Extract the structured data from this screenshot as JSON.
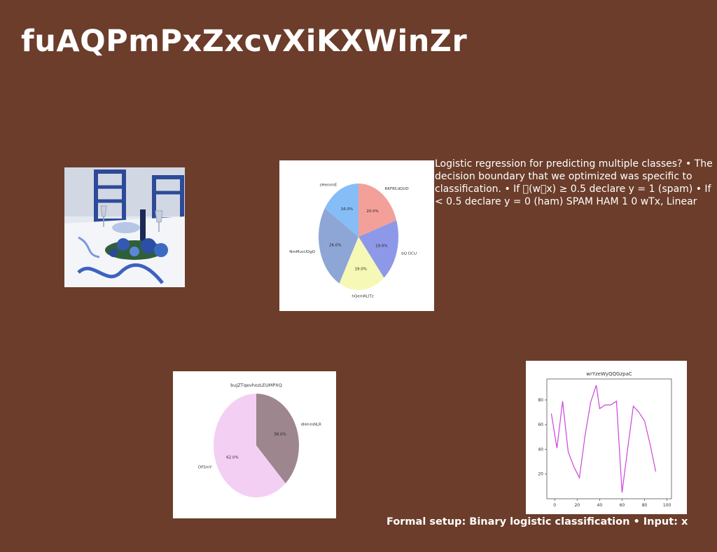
{
  "title": "fuAQPmPxZxcvXiKXWinZr",
  "body_text": "Logistic regression for predicting multiple classes? • The decision boundary that we optimized was specific to classification. • If \u0000(w\u0000x) ≥ 0.5 declare y = 1 (spam) • If < 0.5 declare y = 0 (ham) SPAM HAM 1 0 wTx, Linear",
  "footer_text": "Formal setup: Binary logistic classification • Input: x",
  "photo": {
    "subject": "table-setting-photo"
  },
  "chart_data": [
    {
      "type": "pie",
      "title": "",
      "categories": [
        "RKFRCdQUD",
        "bQ DCU",
        "hQemRLlTz",
        "NmMucUOgO",
        "sHeromE"
      ],
      "values": [
        20.0,
        19.0,
        19.0,
        26.0,
        16.0
      ],
      "labels": [
        "20.0%",
        "19.0%",
        "19.0%",
        "26.0%",
        "16.0%"
      ],
      "colors": [
        "#f4a09a",
        "#8d99e8",
        "#f6f8b6",
        "#8ea6d6",
        "#86bdf7"
      ],
      "start_angle": 90,
      "direction": "clockwise"
    },
    {
      "type": "pie",
      "title": "buJZTqevhozLEUMPXQ",
      "categories": [
        "dHmmNLR",
        "OFSmY"
      ],
      "values": [
        38.0,
        62.0
      ],
      "labels": [
        "38.0%",
        "62.0%"
      ],
      "colors": [
        "#9d868e",
        "#f4cff4"
      ],
      "start_angle": 90,
      "direction": "clockwise"
    },
    {
      "type": "line",
      "title": "wrYzeWyQQGzpaC",
      "x": [
        -3,
        2,
        7,
        12,
        17,
        22,
        27,
        32,
        37,
        40,
        45,
        50,
        55,
        60,
        65,
        70,
        75,
        80,
        85,
        90,
        95,
        100
      ],
      "y": [
        69,
        41,
        79,
        38,
        26,
        17,
        51,
        78,
        92,
        73,
        76,
        76,
        79,
        5,
        41,
        75,
        70,
        63,
        44,
        22,
        null,
        null
      ],
      "xticks": [
        0,
        20,
        40,
        60,
        80,
        100
      ],
      "yticks": [
        20,
        40,
        60,
        80
      ],
      "xlim": [
        -7,
        104
      ],
      "ylim": [
        0,
        97
      ],
      "color": "#cc44dd"
    }
  ]
}
